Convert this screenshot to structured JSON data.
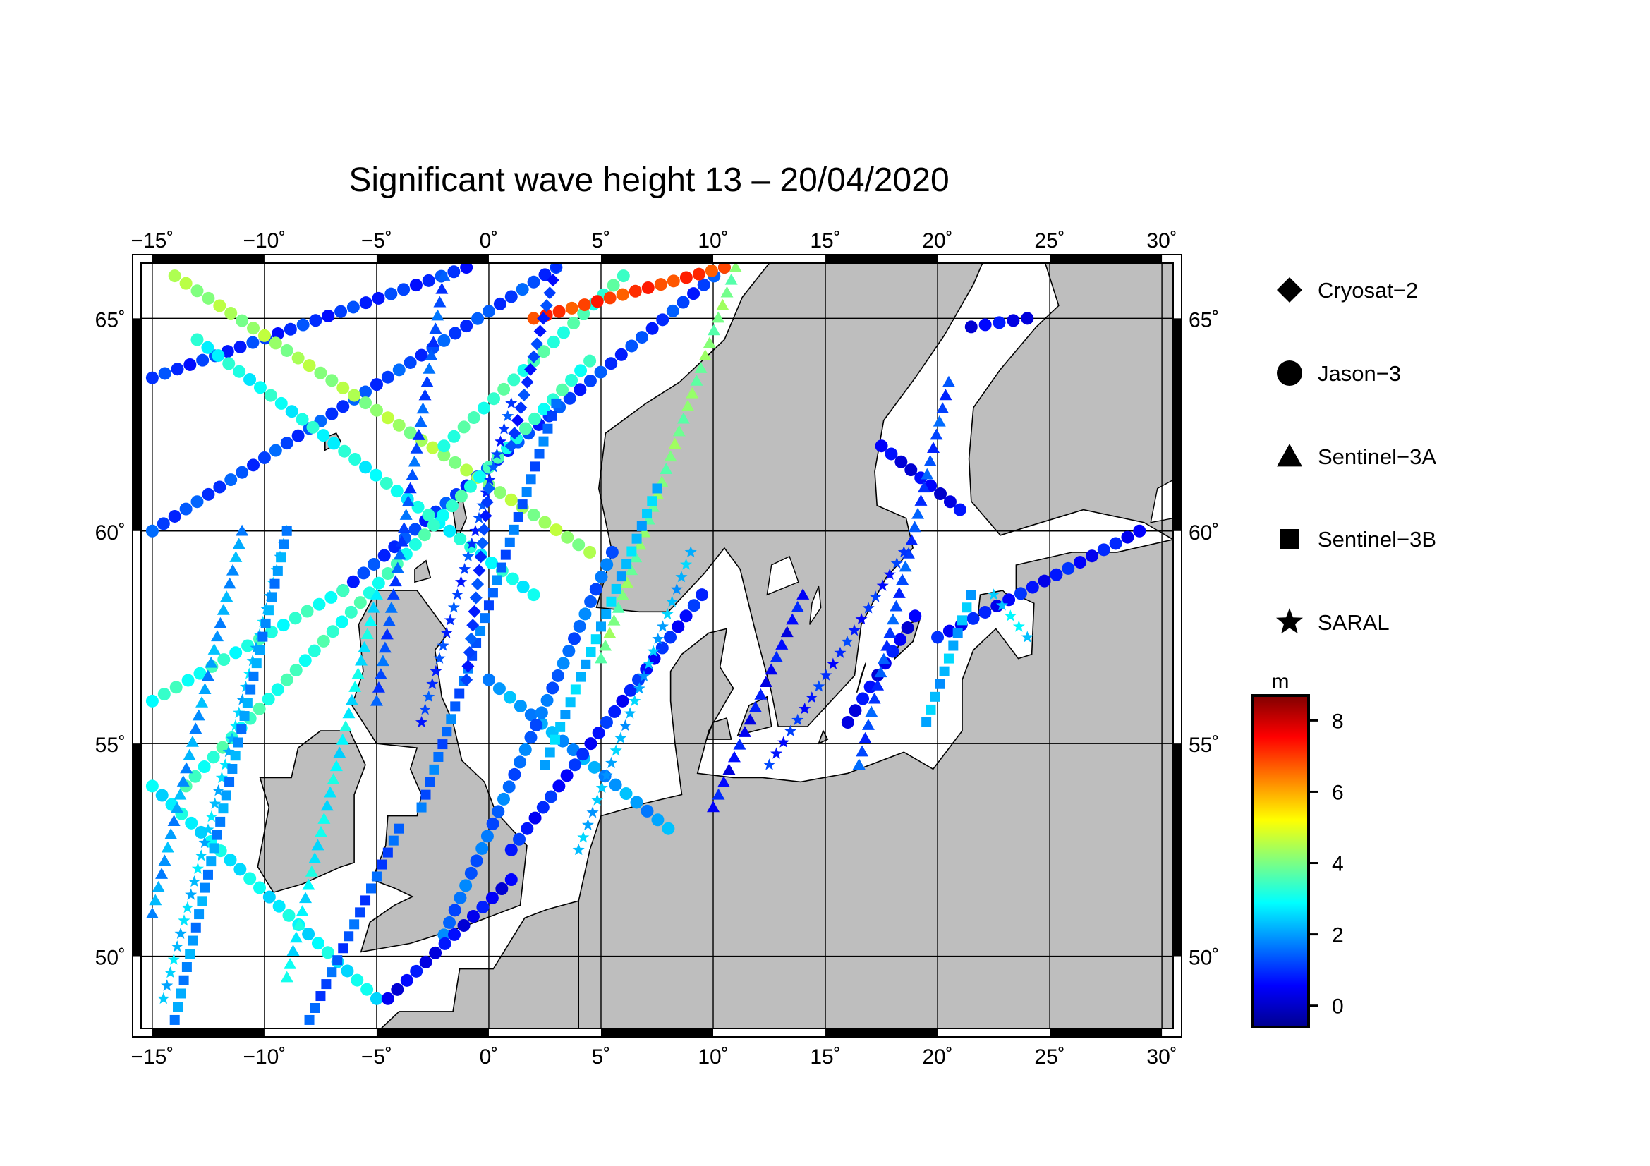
{
  "title": "Significant wave height 13 – 20/04/2020",
  "map": {
    "lon_range": [
      -15.5,
      30.5
    ],
    "lat_range": [
      48.3,
      66.3
    ],
    "lon_ticks": [
      -15,
      -10,
      -5,
      0,
      5,
      10,
      15,
      20,
      25,
      30
    ],
    "lat_ticks": [
      50,
      55,
      60,
      65
    ],
    "lon_tick_labels": [
      "−15˚",
      "−10˚",
      "−5˚",
      "0˚",
      "5˚",
      "10˚",
      "15˚",
      "20˚",
      "25˚",
      "30˚"
    ],
    "lat_tick_labels": [
      "50˚",
      "55˚",
      "60˚",
      "65˚"
    ],
    "grid": true,
    "land_color": "#bebebe",
    "sea_color": "#ffffff"
  },
  "legend": {
    "items": [
      {
        "label": "Cryosat−2",
        "symbol": "diamond"
      },
      {
        "label": "Jason−3",
        "symbol": "circle"
      },
      {
        "label": "Sentinel−3A",
        "symbol": "triangle"
      },
      {
        "label": "Sentinel−3B",
        "symbol": "square"
      },
      {
        "label": "SARAL",
        "symbol": "star"
      }
    ]
  },
  "colorbar": {
    "unit": "m",
    "min": -0.6,
    "max": 8.7,
    "ticks": [
      0,
      2,
      4,
      6,
      8
    ],
    "tick_labels": [
      "0",
      "2",
      "4",
      "6",
      "8"
    ],
    "colormap": "jet"
  },
  "chart_data": {
    "type": "scatter",
    "value_unit": "m",
    "tracks": [
      {
        "satellite": "Jason-3",
        "symbol": "circle",
        "from": [
          -15,
          63.6
        ],
        "to": [
          -1,
          66.2
        ],
        "value": 1.0
      },
      {
        "satellite": "Jason-3",
        "symbol": "circle",
        "from": [
          -15,
          60.0
        ],
        "to": [
          3,
          66.2
        ],
        "value": 1.2
      },
      {
        "satellite": "Jason-3",
        "symbol": "circle",
        "from": [
          -6.5,
          58.6
        ],
        "to": [
          10.5,
          66.2
        ],
        "value": 1.1
      },
      {
        "satellite": "Jason-3",
        "symbol": "circle",
        "from": [
          -15,
          56.0
        ],
        "to": [
          -6.5,
          58.6
        ],
        "value": 3.2
      },
      {
        "satellite": "Jason-3",
        "symbol": "circle",
        "from": [
          -14,
          66.0
        ],
        "to": [
          4.5,
          59.5
        ],
        "value": 4.3
      },
      {
        "satellite": "Jason-3",
        "symbol": "circle",
        "from": [
          -13,
          64.5
        ],
        "to": [
          2,
          58.5
        ],
        "value": 3.0
      },
      {
        "satellite": "Jason-3",
        "symbol": "circle",
        "from": [
          -2,
          62.0
        ],
        "to": [
          6,
          66.0
        ],
        "value": 3.4
      },
      {
        "satellite": "Jason-3",
        "symbol": "circle",
        "from": [
          2,
          65.0
        ],
        "to": [
          10.5,
          66.2
        ],
        "value": 7.0
      },
      {
        "satellite": "Jason-3",
        "symbol": "circle",
        "from": [
          -13.5,
          54.0
        ],
        "to": [
          4.5,
          64.0
        ],
        "value": 3.3
      },
      {
        "satellite": "Jason-3",
        "symbol": "circle",
        "from": [
          -15,
          54.0
        ],
        "to": [
          -5,
          49.0
        ],
        "value": 2.8
      },
      {
        "satellite": "Jason-3",
        "symbol": "circle",
        "from": [
          0,
          56.5
        ],
        "to": [
          8,
          53.0
        ],
        "value": 2.0
      },
      {
        "satellite": "Jason-3",
        "symbol": "circle",
        "from": [
          1,
          52.5
        ],
        "to": [
          9.5,
          58.5
        ],
        "value": 0.8
      },
      {
        "satellite": "Jason-3",
        "symbol": "circle",
        "from": [
          -2,
          50.5
        ],
        "to": [
          5.5,
          59.5
        ],
        "value": 1.5
      },
      {
        "satellite": "Jason-3",
        "symbol": "circle",
        "from": [
          -4.5,
          49.0
        ],
        "to": [
          1,
          51.8
        ],
        "value": 0.5
      },
      {
        "satellite": "Jason-3",
        "symbol": "circle",
        "from": [
          21.5,
          64.8
        ],
        "to": [
          24,
          65.0
        ],
        "value": 0.5
      },
      {
        "satellite": "Jason-3",
        "symbol": "circle",
        "from": [
          17.5,
          62.0
        ],
        "to": [
          21,
          60.5
        ],
        "value": 0.4
      },
      {
        "satellite": "Jason-3",
        "symbol": "circle",
        "from": [
          20,
          57.5
        ],
        "to": [
          29,
          60.0
        ],
        "value": 0.7
      },
      {
        "satellite": "Jason-3",
        "symbol": "circle",
        "from": [
          16,
          55.5
        ],
        "to": [
          19,
          58.0
        ],
        "value": 0.5
      },
      {
        "satellite": "Sentinel-3A",
        "symbol": "triangle",
        "from": [
          -15,
          51.0
        ],
        "to": [
          -11,
          60.0
        ],
        "value": 2.0
      },
      {
        "satellite": "Sentinel-3A",
        "symbol": "triangle",
        "from": [
          -9,
          49.5
        ],
        "to": [
          -5,
          58.5
        ],
        "value": 2.8
      },
      {
        "satellite": "Sentinel-3A",
        "symbol": "triangle",
        "from": [
          -5,
          56.0
        ],
        "to": [
          -2,
          66.0
        ],
        "value": 1.3
      },
      {
        "satellite": "Sentinel-3A",
        "symbol": "triangle",
        "from": [
          5,
          57.0
        ],
        "to": [
          11,
          66.2
        ],
        "value": 4.0
      },
      {
        "satellite": "Sentinel-3A",
        "symbol": "triangle",
        "from": [
          10,
          53.5
        ],
        "to": [
          14,
          58.5
        ],
        "value": 0.6
      },
      {
        "satellite": "Sentinel-3A",
        "symbol": "triangle",
        "from": [
          16.5,
          54.5
        ],
        "to": [
          20.5,
          63.5
        ],
        "value": 1.2
      },
      {
        "satellite": "SARAL",
        "symbol": "star",
        "from": [
          -14.5,
          49.0
        ],
        "to": [
          -9,
          60.0
        ],
        "value": 2.4
      },
      {
        "satellite": "SARAL",
        "symbol": "star",
        "from": [
          -3,
          55.5
        ],
        "to": [
          1,
          63.0
        ],
        "value": 1.1
      },
      {
        "satellite": "SARAL",
        "symbol": "star",
        "from": [
          4,
          52.5
        ],
        "to": [
          9,
          59.5
        ],
        "value": 2.2
      },
      {
        "satellite": "SARAL",
        "symbol": "star",
        "from": [
          12.5,
          54.5
        ],
        "to": [
          18.5,
          59.5
        ],
        "value": 0.9
      },
      {
        "satellite": "SARAL",
        "symbol": "star",
        "from": [
          22.5,
          58.5
        ],
        "to": [
          24,
          57.5
        ],
        "value": 2.6
      },
      {
        "satellite": "Sentinel-3B",
        "symbol": "square",
        "from": [
          -14,
          48.5
        ],
        "to": [
          -9,
          60.0
        ],
        "value": 1.9
      },
      {
        "satellite": "Sentinel-3B",
        "symbol": "square",
        "from": [
          -8,
          48.5
        ],
        "to": [
          -4,
          53.0
        ],
        "value": 1.3
      },
      {
        "satellite": "Sentinel-3B",
        "symbol": "square",
        "from": [
          -3,
          53.5
        ],
        "to": [
          3,
          63.0
        ],
        "value": 1.5
      },
      {
        "satellite": "Sentinel-3B",
        "symbol": "square",
        "from": [
          2.5,
          54.5
        ],
        "to": [
          7.5,
          61.0
        ],
        "value": 2.3
      },
      {
        "satellite": "Sentinel-3B",
        "symbol": "square",
        "from": [
          19.5,
          55.5
        ],
        "to": [
          21.5,
          58.5
        ],
        "value": 2.2
      },
      {
        "satellite": "Cryosat-2",
        "symbol": "diamond",
        "from": [
          1,
          62.0
        ],
        "to": [
          3,
          66.2
        ],
        "value": 1.0
      },
      {
        "satellite": "Cryosat-2",
        "symbol": "diamond",
        "from": [
          -1,
          56.5
        ],
        "to": [
          0,
          61.0
        ],
        "value": 1.1
      }
    ]
  }
}
